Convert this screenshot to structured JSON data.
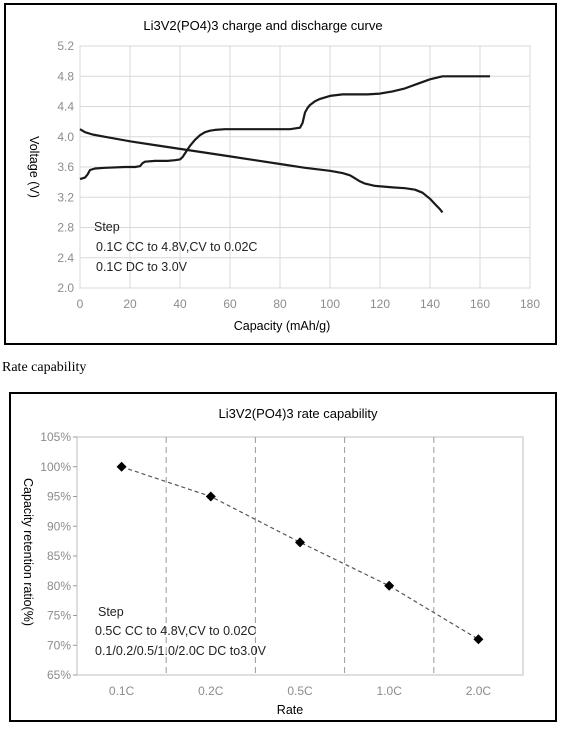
{
  "section_label": "Rate capability",
  "chart_data": [
    {
      "type": "line",
      "title": "Li3V2(PO4)3 charge and discharge curve",
      "xlabel": "Capacity (mAh/g)",
      "ylabel": "Voltage  (V)",
      "xlim": [
        0,
        180
      ],
      "ylim": [
        2.0,
        5.2
      ],
      "x_ticks": [
        0,
        20,
        40,
        60,
        80,
        100,
        120,
        140,
        160,
        180
      ],
      "y_ticks": [
        2.0,
        2.4,
        2.8,
        3.2,
        3.6,
        4.0,
        4.4,
        4.8,
        5.2
      ],
      "x_tick_labels": [
        "0",
        "20",
        "40",
        "60",
        "80",
        "100",
        "120",
        "140",
        "160",
        "180"
      ],
      "y_tick_labels": [
        "2.0",
        "2.4",
        "2.8",
        "3.2",
        "3.6",
        "4.0",
        "4.4",
        "4.8",
        "5.2"
      ],
      "grid": true,
      "color": "#1a1a1a",
      "annotations": [
        "Step",
        "0.1C CC to 4.8V,CV to 0.02C",
        "0.1C DC to 3.0V"
      ],
      "series": [
        {
          "x": [
            0,
            1,
            2,
            3,
            4,
            6,
            10,
            18,
            22,
            24,
            25,
            26,
            30,
            35,
            38,
            40,
            41,
            42,
            44,
            46,
            48,
            50,
            52,
            54,
            58,
            64,
            70,
            76,
            80,
            84,
            86,
            88,
            89,
            90,
            91,
            92,
            94,
            96,
            100,
            105,
            110,
            115,
            120,
            125,
            130,
            135,
            140,
            145,
            150,
            155,
            160,
            164
          ],
          "y": [
            3.44,
            3.45,
            3.46,
            3.5,
            3.56,
            3.58,
            3.59,
            3.6,
            3.6,
            3.61,
            3.65,
            3.67,
            3.68,
            3.68,
            3.69,
            3.7,
            3.73,
            3.78,
            3.88,
            3.96,
            4.02,
            4.06,
            4.08,
            4.09,
            4.1,
            4.1,
            4.1,
            4.1,
            4.1,
            4.1,
            4.11,
            4.12,
            4.18,
            4.32,
            4.38,
            4.42,
            4.47,
            4.5,
            4.54,
            4.56,
            4.56,
            4.56,
            4.57,
            4.6,
            4.64,
            4.7,
            4.76,
            4.8,
            4.8,
            4.8,
            4.8,
            4.8
          ]
        },
        {
          "x": [
            0,
            2,
            5,
            10,
            20,
            30,
            40,
            50,
            60,
            70,
            80,
            90,
            100,
            105,
            108,
            110,
            112,
            114,
            118,
            125,
            130,
            134,
            137,
            140,
            142,
            144,
            145
          ],
          "y": [
            4.1,
            4.06,
            4.03,
            4.0,
            3.94,
            3.89,
            3.84,
            3.79,
            3.74,
            3.69,
            3.64,
            3.59,
            3.55,
            3.52,
            3.49,
            3.45,
            3.41,
            3.38,
            3.35,
            3.33,
            3.32,
            3.3,
            3.26,
            3.18,
            3.11,
            3.04,
            3.0
          ]
        }
      ]
    },
    {
      "type": "scatter",
      "title": "Li3V2(PO4)3 rate capability",
      "xlabel": "Rate",
      "ylabel": "Capacity retention ratio(%)",
      "categories": [
        "0.1C",
        "0.2C",
        "0.5C",
        "1.0C",
        "2.0C"
      ],
      "values": [
        100,
        95,
        87.3,
        80,
        71
      ],
      "ylim": [
        65,
        105
      ],
      "y_ticks": [
        65,
        70,
        75,
        80,
        85,
        90,
        95,
        100,
        105
      ],
      "y_tick_labels": [
        "65%",
        "70%",
        "75%",
        "80%",
        "85%",
        "90%",
        "95%",
        "100%",
        "105%"
      ],
      "grid": "vertical dashed",
      "connector": "dashed",
      "color": "#000000",
      "annotations": [
        "Step",
        "0.5C CC to 4.8V,CV to 0.02C",
        "0.1/0.2/0.5/1.0/2.0C DC to3.0V"
      ]
    }
  ]
}
